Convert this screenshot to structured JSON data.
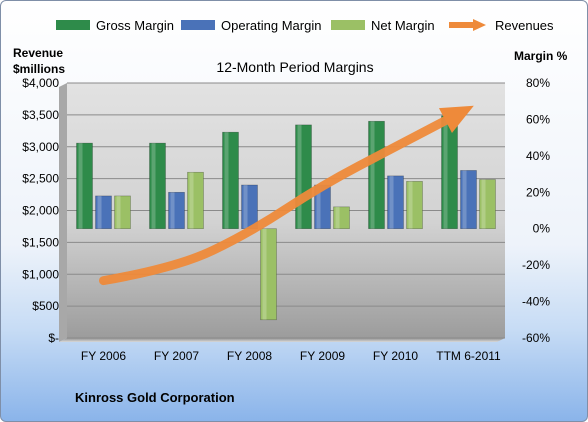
{
  "legend": [
    {
      "label": "Gross Margin",
      "color": "#2e8b4a"
    },
    {
      "label": "Operating Margin",
      "color": "#4a72b8"
    },
    {
      "label": "Net Margin",
      "color": "#9bc065"
    },
    {
      "label": "Revenues",
      "color": "#ee8a3a"
    }
  ],
  "left_axis_title": {
    "line1": "Revenue",
    "line2": "$millions"
  },
  "right_axis_title": "Margin %",
  "company": "Kinross Gold Corporation",
  "chart_data": {
    "type": "bar",
    "title": "12-Month Period Margins",
    "categories": [
      "FY 2006",
      "FY 2007",
      "FY 2008",
      "FY 2009",
      "FY 2010",
      "TTM 6-2011"
    ],
    "series": [
      {
        "name": "Gross Margin",
        "axis": "right",
        "type": "bar",
        "color": "#2e8b4a",
        "values": [
          47,
          47,
          53,
          57,
          59,
          62
        ]
      },
      {
        "name": "Operating Margin",
        "axis": "right",
        "type": "bar",
        "color": "#4a72b8",
        "values": [
          18,
          20,
          24,
          24,
          29,
          32
        ]
      },
      {
        "name": "Net Margin",
        "axis": "right",
        "type": "bar",
        "color": "#9bc065",
        "values": [
          18,
          31,
          -50,
          12,
          26,
          27
        ]
      },
      {
        "name": "Revenues",
        "axis": "left",
        "type": "line",
        "color": "#ee8a3a",
        "values": [
          900,
          1100,
          1650,
          2400,
          3000,
          3600
        ]
      }
    ],
    "left_axis": {
      "min": 0,
      "max": 4000,
      "ticks": [
        "$-",
        "$500",
        "$1,000",
        "$1,500",
        "$2,000",
        "$2,500",
        "$3,000",
        "$3,500",
        "$4,000"
      ]
    },
    "right_axis": {
      "min": -60,
      "max": 80,
      "ticks": [
        "-60%",
        "-40%",
        "-20%",
        "0%",
        "20%",
        "40%",
        "60%",
        "80%"
      ]
    },
    "grid": true
  }
}
